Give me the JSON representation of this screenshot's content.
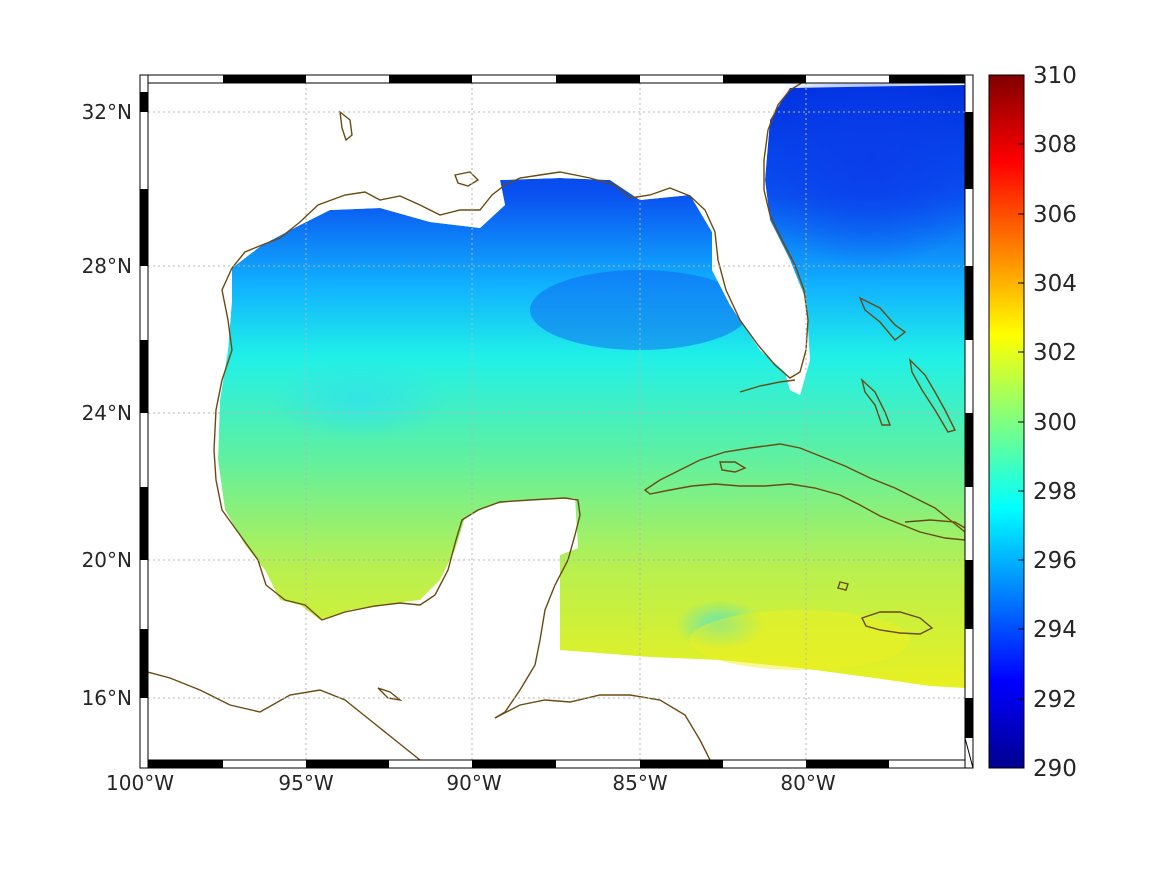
{
  "map": {
    "region": "Gulf of Mexico and western Caribbean",
    "projection": "equirectangular",
    "lon_range": [
      -100,
      -75
    ],
    "lat_range": [
      14.4,
      32.9
    ],
    "gridlines": "dotted",
    "coastline_color": "#6b4a12",
    "lon_ticks": [
      {
        "value": -100,
        "label": "100°W"
      },
      {
        "value": -95,
        "label": "95°W"
      },
      {
        "value": -90,
        "label": "90°W"
      },
      {
        "value": -85,
        "label": "85°W"
      },
      {
        "value": -80,
        "label": "80°W"
      }
    ],
    "lat_ticks": [
      {
        "value": 16,
        "label": "16°N"
      },
      {
        "value": 20,
        "label": "20°N"
      },
      {
        "value": 24,
        "label": "24°N"
      },
      {
        "value": 28,
        "label": "28°N"
      },
      {
        "value": 32,
        "label": "32°N"
      }
    ]
  },
  "colorbar": {
    "colormap": "jet",
    "min": 290,
    "max": 310,
    "ticks": [
      "310",
      "308",
      "306",
      "304",
      "302",
      "300",
      "298",
      "296",
      "294",
      "292",
      "290"
    ]
  }
}
